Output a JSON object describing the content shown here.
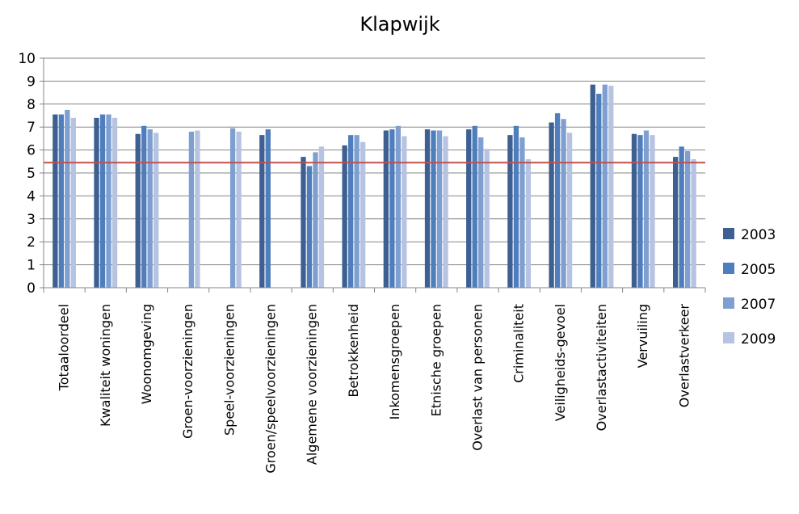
{
  "chart_data": {
    "type": "bar",
    "title": "Klapwijk",
    "xlabel": "",
    "ylabel": "",
    "ylim": [
      0,
      10
    ],
    "yticks": [
      0,
      1,
      2,
      3,
      4,
      5,
      6,
      7,
      8,
      9,
      10
    ],
    "grid": true,
    "legend_position": "right",
    "reference_line": {
      "value": 5.45,
      "color": "#c0504d"
    },
    "categories": [
      "Totaaloordeel",
      "Kwaliteit woningen",
      "Woonomgeving",
      "Groen-voorzieningen",
      "Speel-voorzieningen",
      "Groen/speelvoorzieningen",
      "Algemene voorzieningen",
      "Betrokkenheid",
      "Inkomensgroepen",
      "Etnische groepen",
      "Overlast van personen",
      "Criminaliteit",
      "Veiligheids-gevoel",
      "Overlastactiviteiten",
      "Vervuiling",
      "Overlastverkeer"
    ],
    "series": [
      {
        "name": "2003",
        "color": "#3d5f91",
        "values": [
          7.55,
          7.4,
          6.7,
          null,
          null,
          6.65,
          5.7,
          6.2,
          6.85,
          6.9,
          6.9,
          6.65,
          7.2,
          8.85,
          6.7,
          5.7
        ]
      },
      {
        "name": "2005",
        "color": "#4f7ebd",
        "values": [
          7.55,
          7.55,
          7.05,
          null,
          null,
          6.9,
          5.3,
          6.65,
          6.9,
          6.85,
          7.05,
          7.05,
          7.6,
          8.45,
          6.65,
          6.15
        ]
      },
      {
        "name": "2007",
        "color": "#7f9fd0",
        "values": [
          7.75,
          7.55,
          6.9,
          6.8,
          6.95,
          null,
          5.9,
          6.65,
          7.05,
          6.85,
          6.55,
          6.55,
          7.35,
          8.85,
          6.85,
          5.95
        ]
      },
      {
        "name": "2009",
        "color": "#b6c4e2",
        "values": [
          7.4,
          7.4,
          6.75,
          6.85,
          6.8,
          null,
          6.15,
          6.35,
          6.6,
          6.6,
          6.05,
          5.6,
          6.75,
          8.8,
          6.65,
          5.6
        ]
      }
    ]
  }
}
